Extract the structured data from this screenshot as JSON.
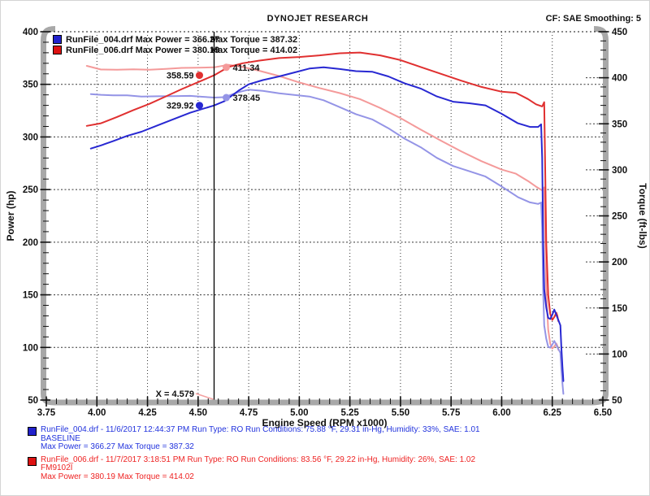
{
  "header": {
    "title": "DYNOJET RESEARCH",
    "correction": "CF: SAE  Smoothing: 5"
  },
  "chart_data": {
    "type": "line",
    "title": "DYNOJET RESEARCH",
    "xlabel": "Engine Speed (RPM x1000)",
    "x_range": [
      3.75,
      6.5
    ],
    "x_tick_step": 0.25,
    "x_minor_step": 0.05,
    "grid": true,
    "axes": {
      "power": {
        "label": "Power (hp)",
        "range": [
          50,
          400
        ],
        "tick_step": 50,
        "minor_step": 10,
        "side": "left"
      },
      "torque": {
        "label": "Torque (ft-lbs)",
        "range": [
          50,
          450
        ],
        "tick_step": 50,
        "minor_step": 10,
        "side": "right"
      }
    },
    "legend": [
      {
        "swatch": "#2222cc",
        "left_text": "RunFile_004.drf Max Power = 366.27",
        "right_text": "Max Torque = 387.32"
      },
      {
        "swatch": "#dd1111",
        "left_text": "RunFile_006.drf Max Power = 380.19",
        "right_text": "Max Torque = 414.02"
      }
    ],
    "cursor": {
      "x": 4.579,
      "label": "X = 4.579",
      "markers": [
        {
          "value": "358.59",
          "axis": "power",
          "y": 358.59,
          "color": "#e03030",
          "side": "left"
        },
        {
          "value": "411.34",
          "axis": "torque",
          "y": 411.34,
          "color": "#f49a9a",
          "side": "right"
        },
        {
          "value": "378.45",
          "axis": "torque",
          "y": 378.45,
          "color": "#9494e6",
          "side": "right"
        },
        {
          "value": "329.92",
          "axis": "power",
          "y": 329.92,
          "color": "#2828d2",
          "side": "left"
        }
      ]
    },
    "series": [
      {
        "name": "torque-run-006",
        "axis": "torque",
        "color": "#f49a9a",
        "points": [
          [
            3.95,
            412.9
          ],
          [
            4.02,
            408.9
          ],
          [
            4.1,
            408.7
          ],
          [
            4.18,
            409.1
          ],
          [
            4.26,
            408.7
          ],
          [
            4.34,
            409.6
          ],
          [
            4.42,
            410.7
          ],
          [
            4.5,
            410.9
          ],
          [
            4.579,
            411.34
          ],
          [
            4.65,
            414.02
          ],
          [
            4.72,
            411.7
          ],
          [
            4.8,
            407.7
          ],
          [
            4.9,
            401.9
          ],
          [
            5.0,
            394.9
          ],
          [
            5.1,
            388.8
          ],
          [
            5.2,
            383.3
          ],
          [
            5.3,
            376.8
          ],
          [
            5.4,
            367.2
          ],
          [
            5.5,
            356.2
          ],
          [
            5.6,
            343.7
          ],
          [
            5.7,
            331.7
          ],
          [
            5.8,
            320.1
          ],
          [
            5.9,
            309.4
          ],
          [
            6.0,
            300.2
          ],
          [
            6.07,
            295.8
          ],
          [
            6.13,
            287.9
          ],
          [
            6.17,
            281.7
          ],
          [
            6.2,
            277.7
          ],
          [
            6.21,
            280.9
          ],
          [
            6.215,
            228.2
          ],
          [
            6.22,
            168.9
          ],
          [
            6.23,
            126.5
          ],
          [
            6.24,
            111.2
          ],
          [
            6.25,
            105.9
          ],
          [
            6.26,
            108.3
          ],
          [
            6.27,
            111.5
          ],
          [
            6.275,
            108.9
          ],
          [
            6.28,
            104.6
          ]
        ]
      },
      {
        "name": "torque-run-004",
        "axis": "torque",
        "color": "#9494e6",
        "points": [
          [
            3.97,
            382.3
          ],
          [
            4.02,
            381.5
          ],
          [
            4.08,
            380.9
          ],
          [
            4.15,
            380.9
          ],
          [
            4.22,
            379.6
          ],
          [
            4.3,
            379.9
          ],
          [
            4.38,
            380.0
          ],
          [
            4.46,
            380.3
          ],
          [
            4.52,
            379.4
          ],
          [
            4.579,
            378.45
          ],
          [
            4.63,
            378.9
          ],
          [
            4.7,
            384.4
          ],
          [
            4.75,
            387.0
          ],
          [
            4.82,
            385.8
          ],
          [
            4.9,
            383.2
          ],
          [
            4.97,
            381.5
          ],
          [
            5.05,
            379.6
          ],
          [
            5.12,
            375.6
          ],
          [
            5.2,
            368.1
          ],
          [
            5.28,
            360.5
          ],
          [
            5.36,
            354.8
          ],
          [
            5.44,
            345.2
          ],
          [
            5.52,
            333.9
          ],
          [
            5.6,
            324.5
          ],
          [
            5.68,
            313.0
          ],
          [
            5.76,
            304.1
          ],
          [
            5.84,
            298.5
          ],
          [
            5.92,
            292.7
          ],
          [
            6.0,
            281.9
          ],
          [
            6.08,
            270.4
          ],
          [
            6.14,
            264.7
          ],
          [
            6.18,
            263.0
          ],
          [
            6.195,
            264.5
          ],
          [
            6.2,
            237.2
          ],
          [
            6.205,
            169.3
          ],
          [
            6.21,
            131.1
          ],
          [
            6.22,
            116.6
          ],
          [
            6.23,
            107.9
          ],
          [
            6.24,
            106.9
          ],
          [
            6.25,
            110.1
          ],
          [
            6.26,
            114.2
          ],
          [
            6.27,
            109.9
          ],
          [
            6.28,
            105.6
          ],
          [
            6.29,
            101.3
          ],
          [
            6.295,
            83.4
          ],
          [
            6.3,
            68.4
          ],
          [
            6.305,
            56.7
          ]
        ]
      },
      {
        "name": "power-run-006",
        "axis": "power",
        "color": "#e03030",
        "points": [
          [
            3.95,
            310.5
          ],
          [
            4.02,
            313
          ],
          [
            4.1,
            319
          ],
          [
            4.18,
            325.5
          ],
          [
            4.26,
            331.5
          ],
          [
            4.34,
            338.5
          ],
          [
            4.42,
            345.5
          ],
          [
            4.5,
            352
          ],
          [
            4.579,
            358.59
          ],
          [
            4.65,
            366.5
          ],
          [
            4.72,
            370
          ],
          [
            4.8,
            372.5
          ],
          [
            4.9,
            375
          ],
          [
            5.0,
            376
          ],
          [
            5.1,
            377.5
          ],
          [
            5.2,
            379.5
          ],
          [
            5.3,
            380.19
          ],
          [
            5.4,
            377.5
          ],
          [
            5.5,
            373
          ],
          [
            5.6,
            366.5
          ],
          [
            5.7,
            360
          ],
          [
            5.8,
            353.5
          ],
          [
            5.9,
            347.5
          ],
          [
            6.0,
            343
          ],
          [
            6.07,
            342
          ],
          [
            6.13,
            336
          ],
          [
            6.17,
            331
          ],
          [
            6.2,
            329
          ],
          [
            6.21,
            333
          ],
          [
            6.215,
            270
          ],
          [
            6.22,
            200
          ],
          [
            6.23,
            150
          ],
          [
            6.24,
            132
          ],
          [
            6.25,
            126
          ],
          [
            6.26,
            129
          ],
          [
            6.27,
            133
          ],
          [
            6.275,
            130
          ],
          [
            6.28,
            125
          ]
        ]
      },
      {
        "name": "power-run-004",
        "axis": "power",
        "color": "#2828d2",
        "points": [
          [
            3.97,
            289
          ],
          [
            4.02,
            292
          ],
          [
            4.08,
            296
          ],
          [
            4.15,
            301
          ],
          [
            4.22,
            305
          ],
          [
            4.3,
            311
          ],
          [
            4.38,
            317
          ],
          [
            4.46,
            323
          ],
          [
            4.52,
            326.5
          ],
          [
            4.579,
            329.92
          ],
          [
            4.63,
            334
          ],
          [
            4.7,
            344
          ],
          [
            4.75,
            350
          ],
          [
            4.82,
            354
          ],
          [
            4.9,
            357.5
          ],
          [
            4.97,
            361
          ],
          [
            5.05,
            365
          ],
          [
            5.12,
            366.27
          ],
          [
            5.2,
            364.5
          ],
          [
            5.28,
            362.5
          ],
          [
            5.36,
            362
          ],
          [
            5.44,
            357.5
          ],
          [
            5.52,
            351
          ],
          [
            5.6,
            346
          ],
          [
            5.68,
            338.5
          ],
          [
            5.76,
            333.5
          ],
          [
            5.84,
            332
          ],
          [
            5.92,
            330
          ],
          [
            6.0,
            322
          ],
          [
            6.08,
            313
          ],
          [
            6.14,
            309.5
          ],
          [
            6.18,
            309.5
          ],
          [
            6.195,
            312
          ],
          [
            6.2,
            280
          ],
          [
            6.205,
            200
          ],
          [
            6.21,
            155
          ],
          [
            6.22,
            138
          ],
          [
            6.23,
            128
          ],
          [
            6.24,
            127
          ],
          [
            6.25,
            131
          ],
          [
            6.26,
            136
          ],
          [
            6.27,
            131
          ],
          [
            6.28,
            126
          ],
          [
            6.29,
            121
          ],
          [
            6.295,
            100
          ],
          [
            6.3,
            82
          ],
          [
            6.305,
            68
          ]
        ]
      }
    ]
  },
  "footer": {
    "runs": [
      {
        "swatch": "#2222cc",
        "text_color": "#2233dd",
        "line1": "RunFile_004.drf - 11/6/2017 12:44:37 PM  Run Type: RO  Run Conditions: 75.88 °F, 29.31 in-Hg,  Humidity:  33%, SAE: 1.01",
        "line2": "BASELINE",
        "line3": "Max Power = 366.27  Max Torque = 387.32"
      },
      {
        "swatch": "#dd1111",
        "text_color": "#ee2222",
        "line1": "RunFile_006.drf - 11/7/2017 3:18:51 PM  Run Type: RO  Run Conditions: 83.56 °F, 29.22 in-Hg,  Humidity:  26%, SAE: 1.02",
        "line2": "FM9102I",
        "line3": "Max Power = 380.19  Max Torque = 414.02"
      }
    ]
  }
}
